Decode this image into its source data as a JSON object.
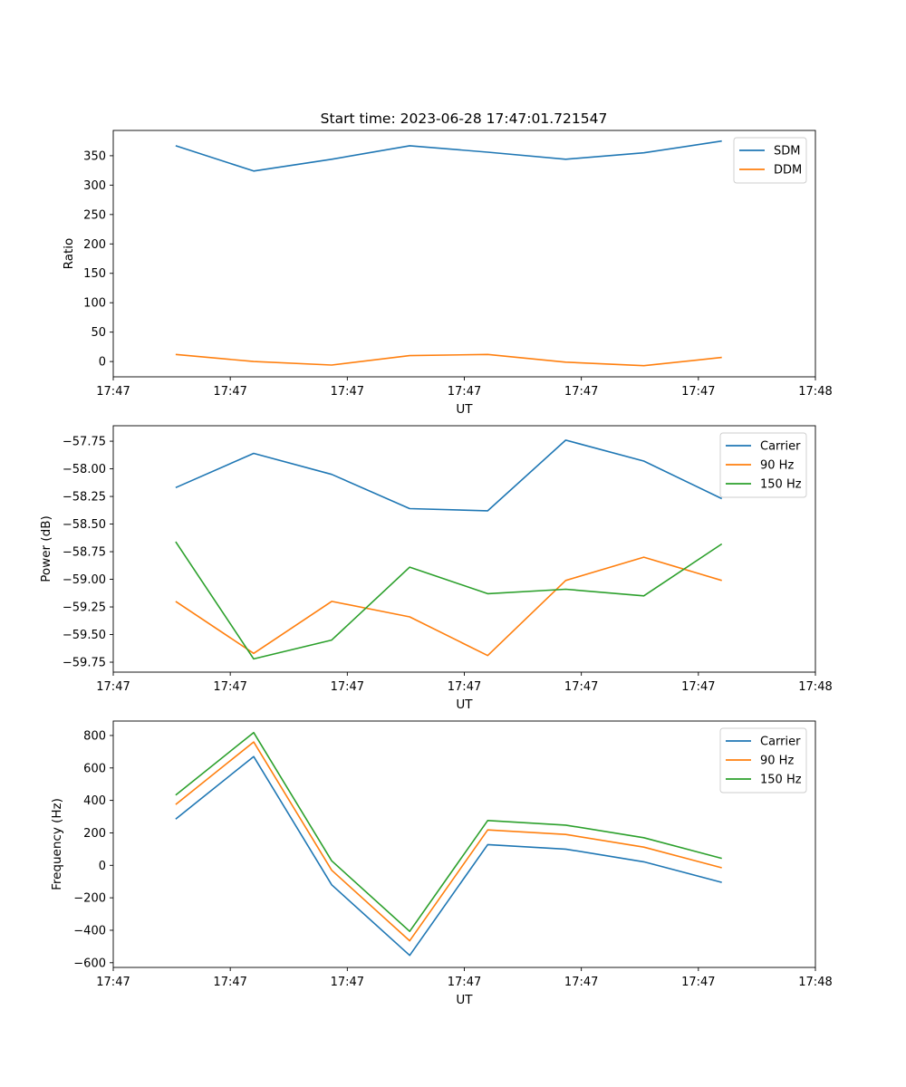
{
  "figure": {
    "title": "Start time: 2023-06-28 17:47:01.721547"
  },
  "colors": {
    "blue": "#1f77b4",
    "orange": "#ff7f0e",
    "green": "#2ca02c"
  },
  "chart_data": [
    {
      "type": "line",
      "title": "Start time: 2023-06-28 17:47:01.721547",
      "xlabel": "UT",
      "ylabel": "Ratio",
      "x": [
        1,
        2,
        3,
        4,
        5,
        6,
        7,
        8
      ],
      "xlim": [
        0.2,
        9.2
      ],
      "x_ticks": [
        0.2,
        1.7,
        3.2,
        4.7,
        6.2,
        7.7,
        9.2
      ],
      "x_tick_labels": [
        "17:47",
        "17:47",
        "17:47",
        "17:47",
        "17:47",
        "17:47",
        "17:48"
      ],
      "ylim": [
        -26,
        393
      ],
      "y_ticks": [
        0,
        50,
        100,
        150,
        200,
        250,
        300,
        350
      ],
      "y_tick_labels": [
        "0",
        "50",
        "100",
        "150",
        "200",
        "250",
        "300",
        "350"
      ],
      "legend": "top-right",
      "series": [
        {
          "name": "SDM",
          "color": "#1f77b4",
          "values": [
            367,
            324,
            344,
            367,
            356,
            344,
            355,
            375
          ]
        },
        {
          "name": "DDM",
          "color": "#ff7f0e",
          "values": [
            12,
            0,
            -6,
            10,
            12,
            -1,
            -7,
            7
          ]
        }
      ]
    },
    {
      "type": "line",
      "title": "",
      "xlabel": "UT",
      "ylabel": "Power (dB)",
      "x": [
        1,
        2,
        3,
        4,
        5,
        6,
        7,
        8
      ],
      "xlim": [
        0.2,
        9.2
      ],
      "x_ticks": [
        0.2,
        1.7,
        3.2,
        4.7,
        6.2,
        7.7,
        9.2
      ],
      "x_tick_labels": [
        "17:47",
        "17:47",
        "17:47",
        "17:47",
        "17:47",
        "17:47",
        "17:48"
      ],
      "ylim": [
        -59.84,
        -57.61
      ],
      "y_ticks": [
        -59.75,
        -59.5,
        -59.25,
        -59.0,
        -58.75,
        -58.5,
        -58.25,
        -58.0,
        -57.75
      ],
      "y_tick_labels": [
        "−59.75",
        "−59.50",
        "−59.25",
        "−59.00",
        "−58.75",
        "−58.50",
        "−58.25",
        "−58.00",
        "−57.75"
      ],
      "legend": "top-right",
      "series": [
        {
          "name": "Carrier",
          "color": "#1f77b4",
          "values": [
            -58.17,
            -57.86,
            -58.05,
            -58.36,
            -58.38,
            -57.74,
            -57.93,
            -58.27
          ]
        },
        {
          "name": "90 Hz",
          "color": "#ff7f0e",
          "values": [
            -59.2,
            -59.67,
            -59.2,
            -59.34,
            -59.69,
            -59.01,
            -58.8,
            -59.01
          ]
        },
        {
          "name": "150 Hz",
          "color": "#2ca02c",
          "values": [
            -58.66,
            -59.72,
            -59.55,
            -58.89,
            -59.13,
            -59.09,
            -59.15,
            -58.68
          ]
        }
      ]
    },
    {
      "type": "line",
      "title": "",
      "xlabel": "UT",
      "ylabel": "Frequency (Hz)",
      "x": [
        1,
        2,
        3,
        4,
        5,
        6,
        7,
        8
      ],
      "xlim": [
        0.2,
        9.2
      ],
      "x_ticks": [
        0.2,
        1.7,
        3.2,
        4.7,
        6.2,
        7.7,
        9.2
      ],
      "x_tick_labels": [
        "17:47",
        "17:47",
        "17:47",
        "17:47",
        "17:47",
        "17:47",
        "17:48"
      ],
      "ylim": [
        -629,
        889
      ],
      "y_ticks": [
        -600,
        -400,
        -200,
        0,
        200,
        400,
        600,
        800
      ],
      "y_tick_labels": [
        "−600",
        "−400",
        "−200",
        "0",
        "200",
        "400",
        "600",
        "800"
      ],
      "legend": "top-right",
      "series": [
        {
          "name": "Carrier",
          "color": "#1f77b4",
          "values": [
            285,
            670,
            -120,
            -555,
            128,
            100,
            22,
            -105
          ]
        },
        {
          "name": "90 Hz",
          "color": "#ff7f0e",
          "values": [
            375,
            760,
            -30,
            -465,
            218,
            190,
            112,
            -15
          ]
        },
        {
          "name": "150 Hz",
          "color": "#2ca02c",
          "values": [
            433,
            818,
            28,
            -407,
            276,
            248,
            170,
            43
          ]
        }
      ]
    }
  ]
}
